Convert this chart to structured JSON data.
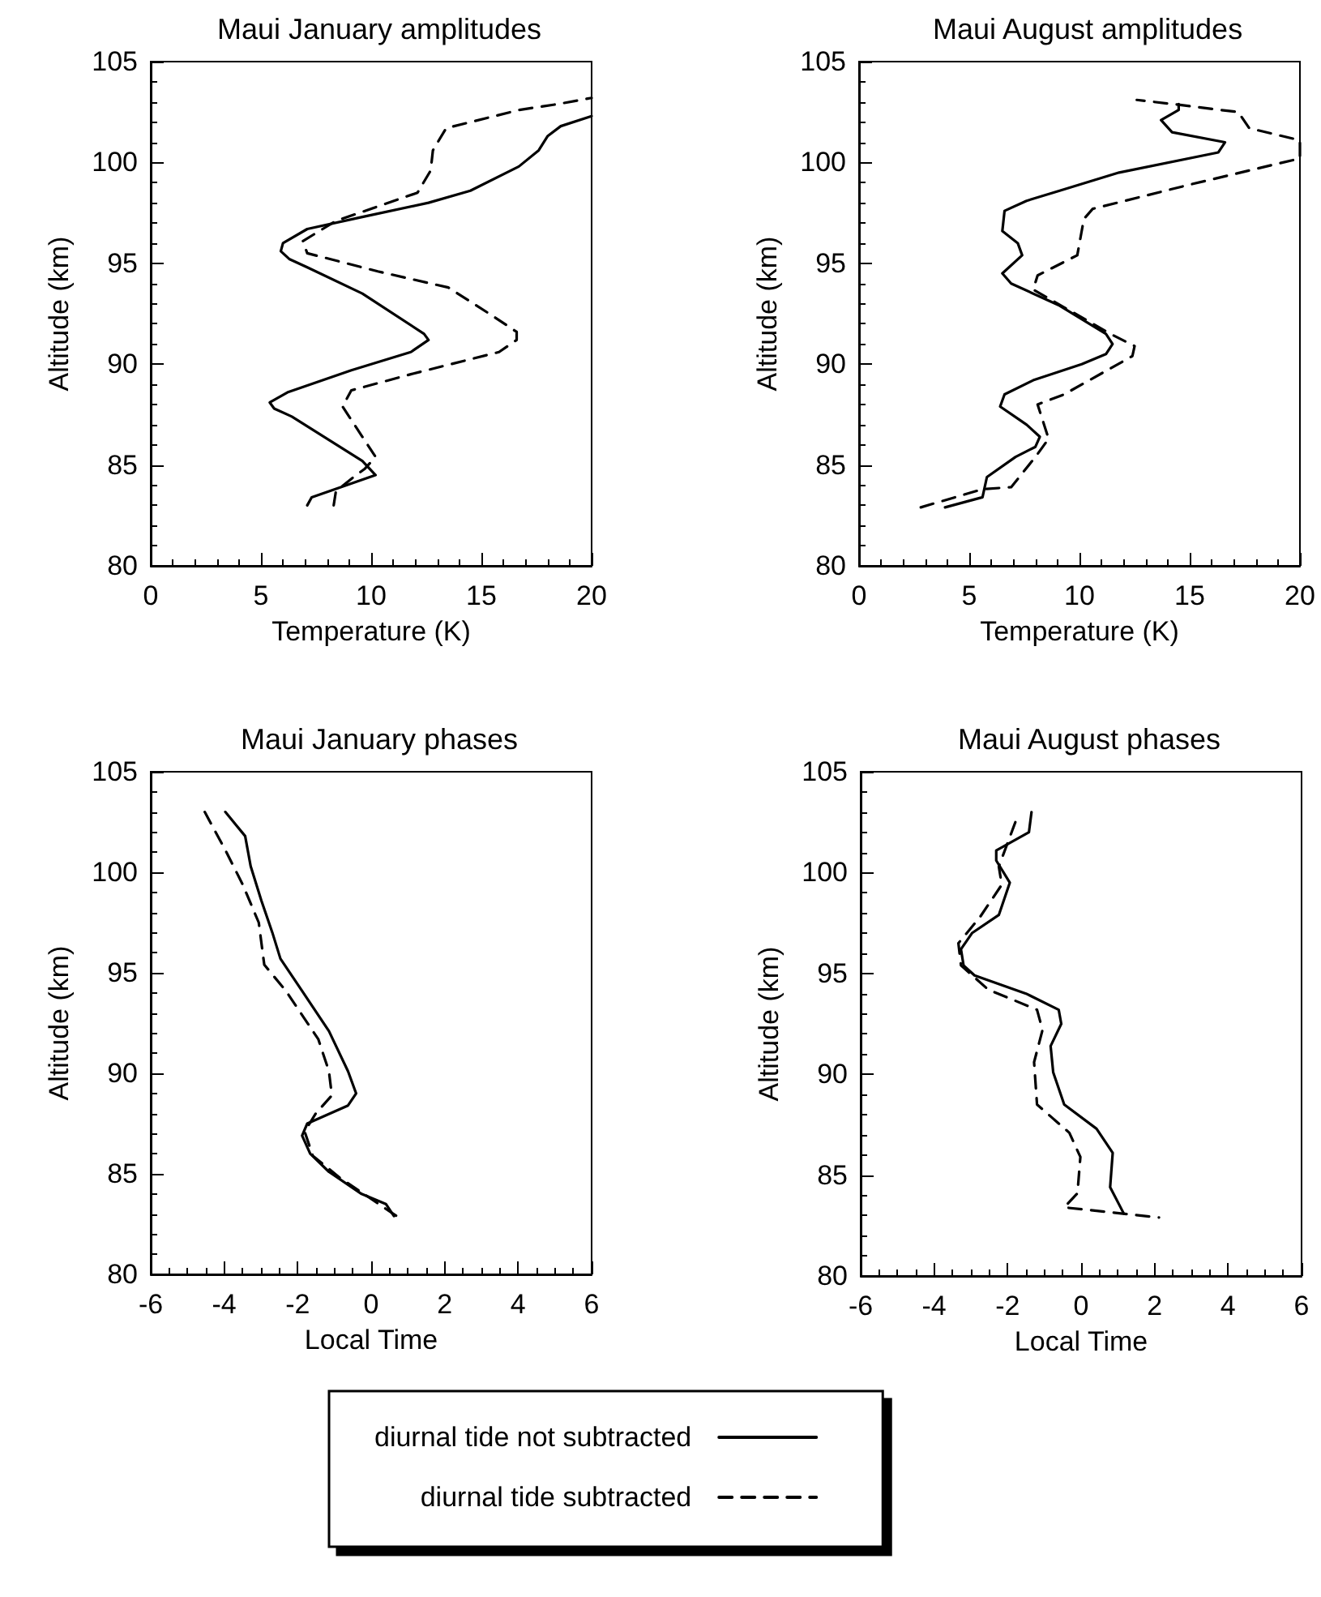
{
  "chart_data": [
    {
      "type": "line",
      "title": "Maui January amplitudes",
      "xlabel": "Temperature (K)",
      "ylabel": "Altitude (km)",
      "xlim": [
        0,
        20
      ],
      "xticks": [
        0,
        5,
        10,
        15,
        20
      ],
      "ylim": [
        80,
        105
      ],
      "yticks": [
        80,
        85,
        90,
        95,
        100,
        105
      ],
      "marker": "none",
      "legend": false,
      "series": [
        {
          "color": "#000000",
          "line_style": "solid",
          "x": [
            7.1,
            7.3,
            10.2,
            9.6,
            6.4,
            5.6,
            5.4,
            6.2,
            9.1,
            11.8,
            12.6,
            12.4,
            9.6,
            7.1,
            6.3,
            5.9,
            6.0,
            7.1,
            9.6,
            12.6,
            14.5,
            16.7,
            17.6,
            18.0,
            18.6,
            20
          ],
          "values": [
            83.0,
            83.4,
            84.5,
            85.2,
            87.4,
            87.8,
            88.1,
            88.6,
            89.7,
            90.6,
            91.2,
            91.5,
            93.5,
            94.8,
            95.2,
            95.6,
            96.0,
            96.7,
            97.3,
            98.0,
            98.6,
            99.8,
            100.6,
            101.3,
            101.8,
            102.3
          ]
        },
        {
          "color": "#000000",
          "line_style": "dashed",
          "x": [
            8.3,
            8.4,
            9.2,
            9.7,
            10.2,
            8.7,
            9.1,
            11.8,
            15.8,
            16.6,
            16.6,
            15.5,
            13.5,
            10.3,
            7.1,
            6.9,
            8.4,
            12.1,
            12.7,
            12.8,
            13.4,
            16.7,
            18.5,
            20
          ],
          "values": [
            83.0,
            83.7,
            84.4,
            84.8,
            85.4,
            87.9,
            88.7,
            89.5,
            90.6,
            91.2,
            91.6,
            92.4,
            93.8,
            94.6,
            95.5,
            96.1,
            97.1,
            98.5,
            99.6,
            100.6,
            101.7,
            102.6,
            102.9,
            103.2
          ]
        }
      ]
    },
    {
      "type": "line",
      "title": "Maui August amplitudes",
      "xlabel": "Temperature (K)",
      "ylabel": "Altitude (km)",
      "xlim": [
        0,
        20
      ],
      "xticks": [
        0,
        5,
        10,
        15,
        20
      ],
      "ylim": [
        80,
        105
      ],
      "yticks": [
        80,
        85,
        90,
        95,
        100,
        105
      ],
      "marker": "none",
      "legend": false,
      "series": [
        {
          "color": "#000000",
          "line_style": "solid",
          "x": [
            3.9,
            5.6,
            5.8,
            7.1,
            8.0,
            8.2,
            7.6,
            6.4,
            6.6,
            7.9,
            10.1,
            11.2,
            11.5,
            11.2,
            9.1,
            6.9,
            6.5,
            7.4,
            7.2,
            6.5,
            6.6,
            7.6,
            9.1,
            11.8,
            16.3,
            16.6,
            14.2,
            13.7,
            14.5,
            14.5
          ],
          "values": [
            82.9,
            83.4,
            84.4,
            85.4,
            85.9,
            86.4,
            87.0,
            87.9,
            88.5,
            89.2,
            90.0,
            90.5,
            91.0,
            91.5,
            92.9,
            94.0,
            94.5,
            95.4,
            96.0,
            96.6,
            97.6,
            98.1,
            98.6,
            99.5,
            100.5,
            101.0,
            101.5,
            102.1,
            102.6,
            102.9
          ]
        },
        {
          "color": "#000000",
          "line_style": "dashed",
          "x": [
            2.8,
            5.6,
            6.9,
            8.0,
            8.6,
            8.1,
            9.3,
            12.4,
            12.5,
            11.4,
            7.9,
            8.1,
            9.9,
            10.2,
            10.6,
            15.0,
            20.0,
            20.0,
            17.7,
            17.2,
            16.4,
            14.2,
            12.6
          ],
          "values": [
            82.9,
            83.8,
            83.9,
            85.4,
            86.3,
            88.0,
            88.5,
            90.4,
            90.9,
            91.5,
            93.7,
            94.4,
            95.4,
            97.2,
            97.7,
            98.9,
            100.2,
            101.1,
            101.7,
            102.5,
            102.6,
            102.9,
            103.1
          ]
        }
      ]
    },
    {
      "type": "line",
      "title": "Maui January phases",
      "xlabel": "Local Time",
      "ylabel": "Altitude (km)",
      "xlim": [
        -6,
        6
      ],
      "xticks": [
        -6,
        -4,
        -2,
        0,
        2,
        4,
        6
      ],
      "ylim": [
        80,
        105
      ],
      "yticks": [
        80,
        85,
        90,
        95,
        100,
        105
      ],
      "marker": "none",
      "legend": false,
      "series": [
        {
          "color": "#000000",
          "line_style": "solid",
          "x": [
            -3.97,
            -3.43,
            -3.28,
            -2.99,
            -2.69,
            -2.47,
            -1.88,
            -1.15,
            -0.63,
            -0.41,
            -0.63,
            -1.74,
            -1.88,
            -1.66,
            -1.15,
            -0.26,
            0.4,
            0.62
          ],
          "values": [
            103.0,
            101.8,
            100.3,
            98.6,
            97.0,
            95.7,
            94.1,
            92.1,
            90.1,
            89.0,
            88.4,
            87.5,
            86.9,
            86.0,
            85.1,
            84.0,
            83.5,
            82.9
          ]
        },
        {
          "color": "#000000",
          "line_style": "dashed",
          "x": [
            -4.53,
            -3.94,
            -3.5,
            -3.06,
            -2.91,
            -2.32,
            -1.44,
            -1.15,
            -1.07,
            -1.51,
            -1.81,
            -1.59,
            -0.85,
            -0.12,
            0.69
          ],
          "values": [
            103.0,
            101.0,
            99.4,
            97.5,
            95.4,
            94.1,
            91.7,
            90.1,
            88.9,
            88.0,
            87.1,
            85.9,
            84.8,
            83.9,
            82.9
          ]
        }
      ]
    },
    {
      "type": "line",
      "title": "Maui August phases",
      "xlabel": "Local Time",
      "ylabel": "Altitude (km)",
      "xlim": [
        -6,
        6
      ],
      "xticks": [
        -6,
        -4,
        -2,
        0,
        2,
        4,
        6
      ],
      "ylim": [
        80,
        105
      ],
      "yticks": [
        80,
        85,
        90,
        95,
        100,
        105
      ],
      "marker": "none",
      "legend": "bottom",
      "series": [
        {
          "name": "diurnal tide not subtracted",
          "color": "#000000",
          "line_style": "solid",
          "x": [
            -1.35,
            -1.42,
            -2.31,
            -2.31,
            -1.94,
            -2.24,
            -2.97,
            -3.27,
            -3.2,
            -2.9,
            -1.5,
            -0.61,
            -0.54,
            -0.83,
            -0.76,
            -0.46,
            0.42,
            0.86,
            0.79,
            1.16
          ],
          "values": [
            103.0,
            102.0,
            101.1,
            100.6,
            99.5,
            97.9,
            97.0,
            96.2,
            95.4,
            94.9,
            94.0,
            93.2,
            92.5,
            91.4,
            90.1,
            88.5,
            87.3,
            86.1,
            84.4,
            83.1
          ]
        },
        {
          "name": "diurnal tide subtracted",
          "color": "#000000",
          "line_style": "dashed",
          "x": [
            -1.79,
            -2.24,
            -2.16,
            -2.75,
            -3.34,
            -3.27,
            -2.53,
            -1.2,
            -1.05,
            -1.28,
            -1.2,
            -0.32,
            -0.02,
            -0.1,
            -0.46,
            2.12
          ],
          "values": [
            102.5,
            100.3,
            99.4,
            97.8,
            96.5,
            95.4,
            94.2,
            93.2,
            92.2,
            90.6,
            88.5,
            87.1,
            85.9,
            84.1,
            83.4,
            82.9
          ]
        }
      ]
    }
  ]
}
